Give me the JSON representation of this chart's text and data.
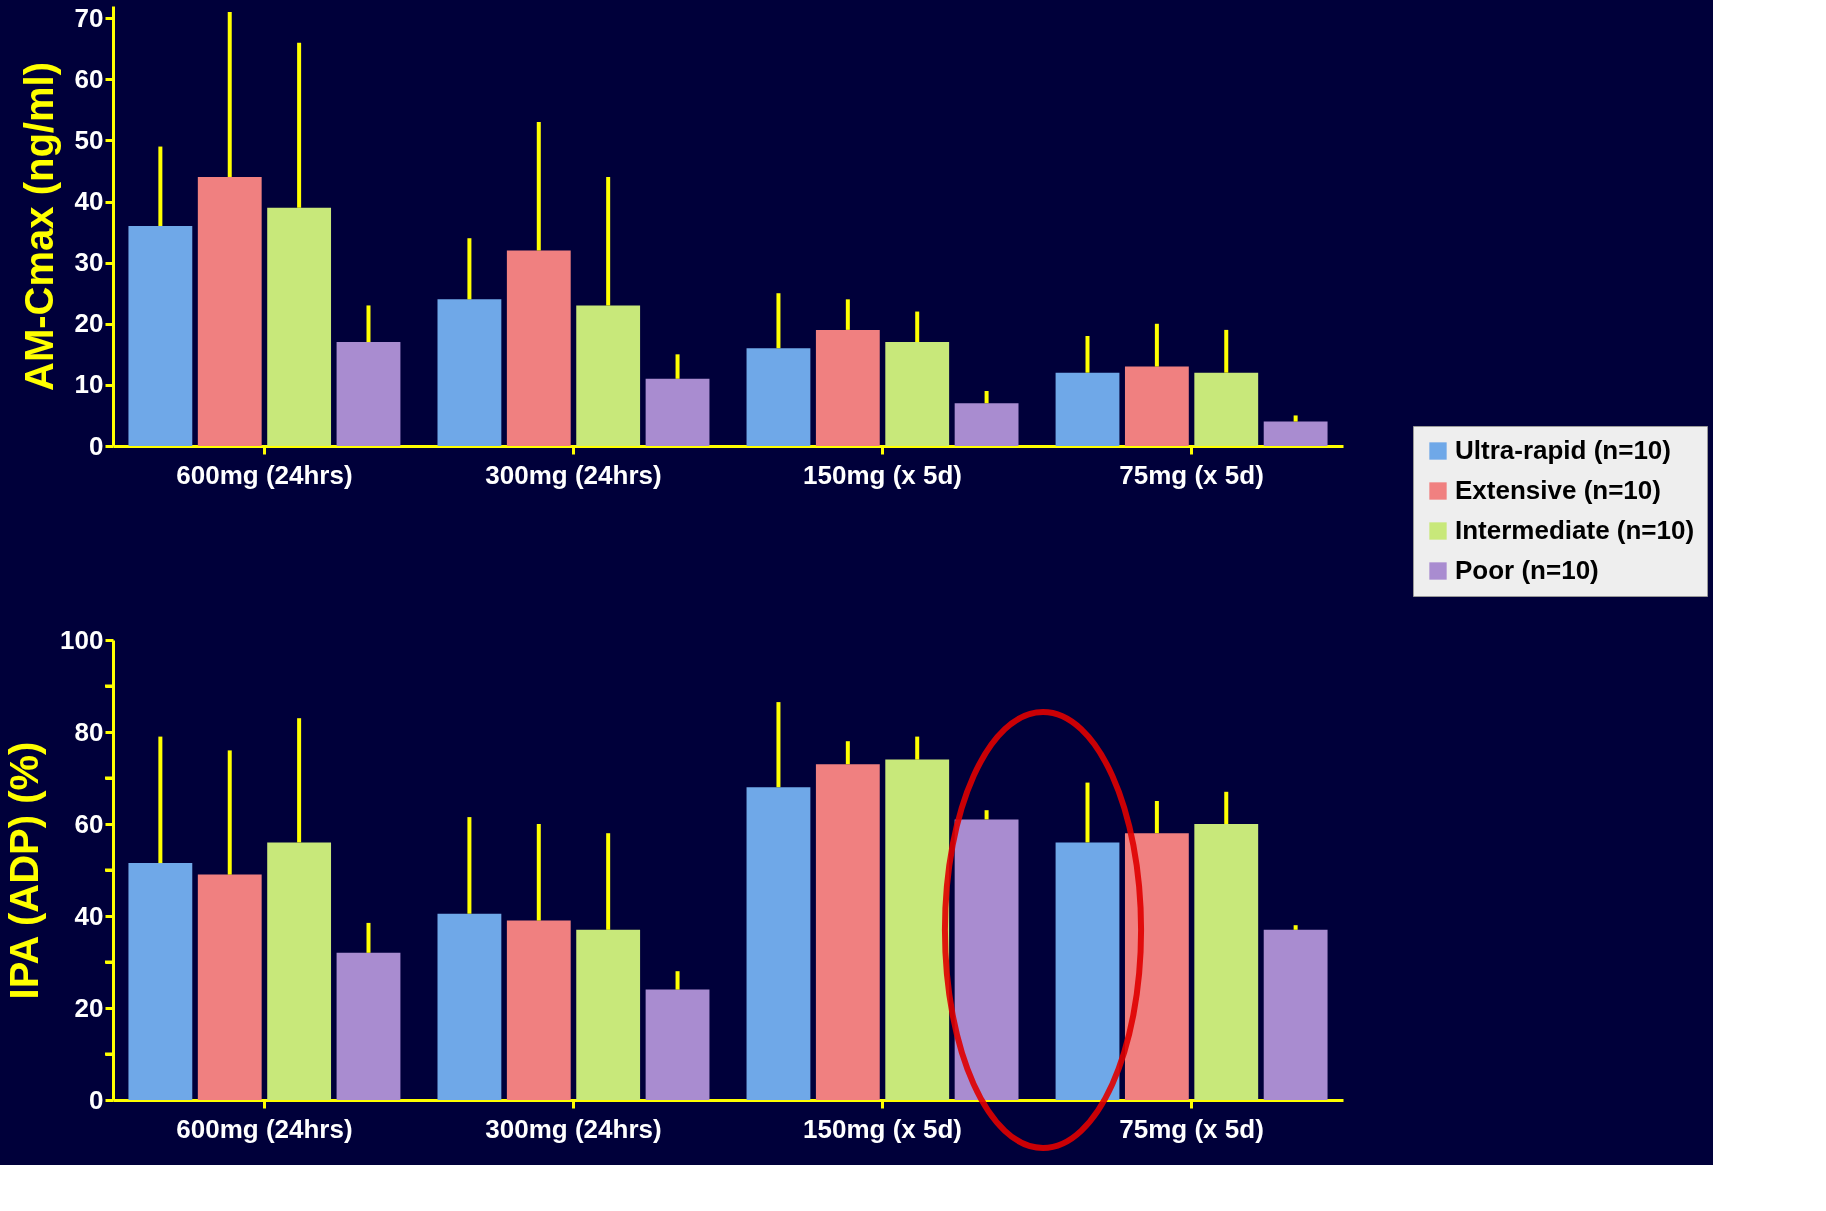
{
  "chart_data": [
    {
      "type": "bar",
      "ylabel": "AM-Cmax  (ng/ml)",
      "categories": [
        "600mg (24hrs)",
        "300mg (24hrs)",
        "150mg (x 5d)",
        "75mg (x 5d)"
      ],
      "series": [
        {
          "name": "Ultra-rapid (n=10)",
          "color": "#6fa8e8",
          "values": [
            36,
            24,
            16,
            12
          ],
          "errors": [
            [
              36,
              49
            ],
            [
              24,
              34
            ],
            [
              16,
              25
            ],
            [
              12,
              18
            ]
          ]
        },
        {
          "name": "Extensive (n=10)",
          "color": "#f08080",
          "values": [
            44,
            32,
            19,
            13
          ],
          "errors": [
            [
              44,
              71
            ],
            [
              32,
              53
            ],
            [
              19,
              24
            ],
            [
              13,
              20
            ]
          ]
        },
        {
          "name": "Intermediate (n=10)",
          "color": "#c8e87a",
          "values": [
            39,
            23,
            17,
            12
          ],
          "errors": [
            [
              39,
              66
            ],
            [
              23,
              44
            ],
            [
              17,
              22
            ],
            [
              12,
              19
            ]
          ]
        },
        {
          "name": "Poor (n=10)",
          "color": "#a98cd0",
          "values": [
            17,
            11,
            7,
            4
          ],
          "errors": [
            [
              17,
              23
            ],
            [
              11,
              15
            ],
            [
              7,
              9
            ],
            [
              4,
              5
            ]
          ]
        }
      ],
      "ylim": [
        0,
        72
      ],
      "yticks": [
        0,
        10,
        20,
        30,
        40,
        50,
        60,
        70
      ],
      "grid": false,
      "legend": "right"
    },
    {
      "type": "bar",
      "ylabel": "IPA (ADP) (%)",
      "categories": [
        "600mg (24hrs)",
        "300mg (24hrs)",
        "150mg (x 5d)",
        "75mg (x 5d)"
      ],
      "series": [
        {
          "name": "Ultra-rapid (n=10)",
          "color": "#6fa8e8",
          "values": [
            51.5,
            40.5,
            68,
            56
          ],
          "errors": [
            [
              51.5,
              79
            ],
            [
              40.5,
              61.5
            ],
            [
              68,
              86.5
            ],
            [
              56,
              69
            ]
          ]
        },
        {
          "name": "Extensive (n=10)",
          "color": "#f08080",
          "values": [
            49,
            39,
            73,
            58
          ],
          "errors": [
            [
              49,
              76
            ],
            [
              39,
              60
            ],
            [
              73,
              78
            ],
            [
              58,
              65
            ]
          ]
        },
        {
          "name": "Intermediate (n=10)",
          "color": "#c8e87a",
          "values": [
            56,
            37,
            74,
            60
          ],
          "errors": [
            [
              56,
              83
            ],
            [
              37,
              58
            ],
            [
              74,
              79
            ],
            [
              60,
              67
            ]
          ]
        },
        {
          "name": "Poor (n=10)",
          "color": "#a98cd0",
          "values": [
            32,
            24,
            61,
            37
          ],
          "errors": [
            [
              32,
              38.5
            ],
            [
              24,
              28
            ],
            [
              61,
              63
            ],
            [
              37,
              38
            ]
          ]
        }
      ],
      "ylim": [
        0,
        100
      ],
      "yticks": [
        0,
        {
          "value": 10,
          "label": null
        },
        20,
        {
          "value": 30,
          "label": null
        },
        40,
        {
          "value": 50,
          "label": null
        },
        60,
        {
          "value": 70,
          "label": null
        },
        80,
        {
          "value": 90,
          "label": null
        },
        100
      ],
      "grid": false,
      "legend": false
    }
  ]
}
